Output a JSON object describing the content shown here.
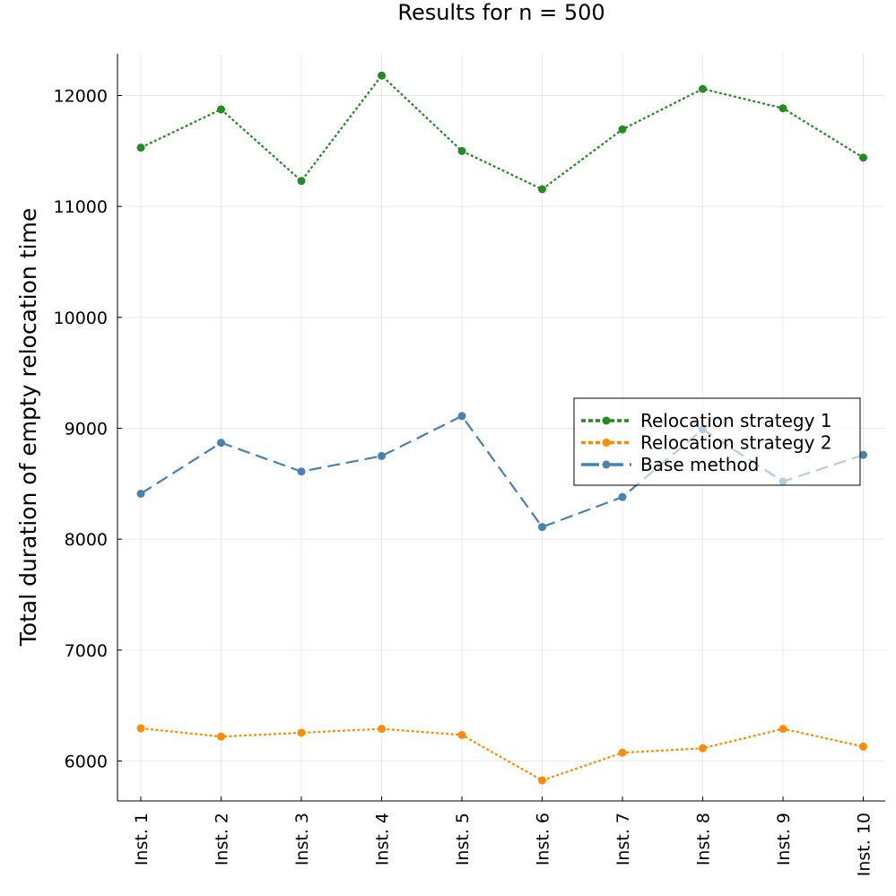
{
  "chart_data": {
    "type": "line",
    "title": "Results for n = 500",
    "xlabel": "",
    "ylabel": "Total duration of empty relocation time",
    "categories": [
      "Inst. 1",
      "Inst. 2",
      "Inst. 3",
      "Inst. 4",
      "Inst. 5",
      "Inst. 6",
      "Inst. 7",
      "Inst. 8",
      "Inst. 9",
      "Inst. 10"
    ],
    "yticks": [
      6000,
      7000,
      8000,
      9000,
      10000,
      11000,
      12000
    ],
    "ytick_labels": [
      "6000",
      "7000",
      "8000",
      "9000",
      "10000",
      "11000",
      "12000"
    ],
    "ylim": [
      5640,
      12380
    ],
    "grid": true,
    "legend_position": "right",
    "series": [
      {
        "name": "Relocation strategy 1",
        "color": "#228b22",
        "dash": "dotted",
        "values": [
          11530,
          11875,
          11230,
          12180,
          11500,
          11155,
          11695,
          12060,
          11885,
          11440
        ]
      },
      {
        "name": "Relocation strategy 2",
        "color": "#ff8c00",
        "dash": "dotted",
        "values": [
          6295,
          6220,
          6255,
          6290,
          6235,
          5825,
          6075,
          6115,
          6290,
          6130
        ]
      },
      {
        "name": "Base method",
        "color": "#4682b4",
        "dash": "dashed",
        "values": [
          8410,
          8870,
          8610,
          8750,
          9110,
          8110,
          8380,
          8990,
          8520,
          8760
        ]
      }
    ]
  }
}
